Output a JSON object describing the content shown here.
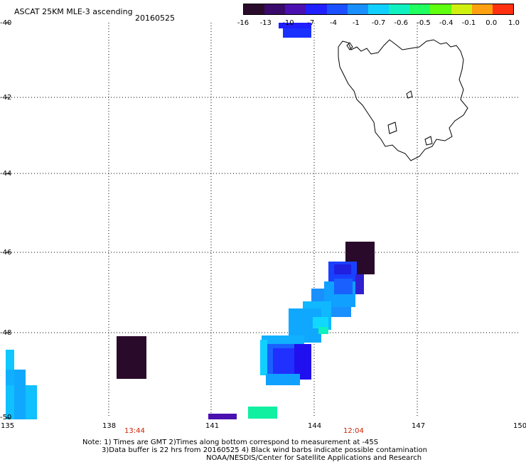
{
  "header": {
    "title": "ASCAT 25KM MLE-3 ascending",
    "date": "20160525"
  },
  "colorbar": {
    "ticks": [
      "-16",
      "-13",
      "-10",
      "-7",
      "-4",
      "-1",
      "-0.7",
      "-0.6",
      "-0.5",
      "-0.4",
      "-0.1",
      "0.0",
      "1.0"
    ],
    "colors": [
      "#2a0a2a",
      "#3a0a6a",
      "#4a10b0",
      "#2020ff",
      "#1a50ff",
      "#1a90ff",
      "#10d0ff",
      "#10f0c0",
      "#20ff60",
      "#60ff10",
      "#d0f010",
      "#ffa010",
      "#ff3010"
    ]
  },
  "axes": {
    "longitudes": [
      "135",
      "138",
      "141",
      "144",
      "147",
      "150"
    ],
    "latitudes": [
      "-40",
      "-42",
      "-44",
      "-46",
      "-48",
      "-50"
    ]
  },
  "times": {
    "left": "13:44",
    "right": "12:04"
  },
  "footer": {
    "line1": "Note: 1) Times are GMT 2)Times along bottom correspond to measurement at -45S",
    "line2": "3)Data buffer is 22 hrs from 20160525 4) Black wind barbs indicate possible contamination",
    "line3": "NOAA/NESDIS/Center for Satellite Applications and Research"
  }
}
